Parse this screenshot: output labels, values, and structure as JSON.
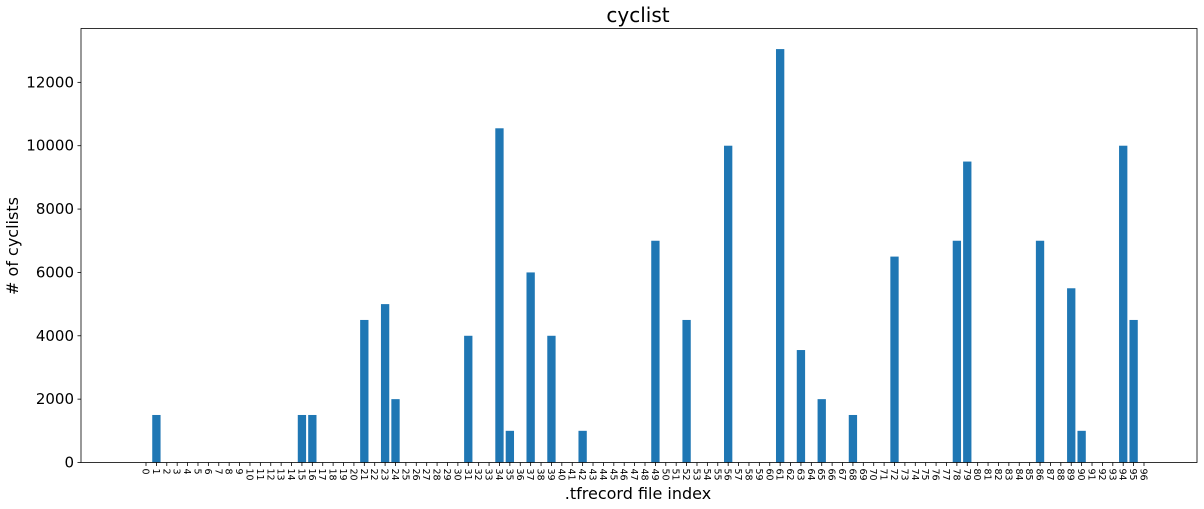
{
  "chart_data": {
    "type": "bar",
    "title": "cyclist",
    "xlabel": ".tfrecord file index",
    "ylabel": "# of cyclists",
    "ylim": [
      0,
      13700
    ],
    "yticks": [
      0,
      2000,
      4000,
      6000,
      8000,
      10000,
      12000
    ],
    "grid": false,
    "bar_color": "#1f77b4",
    "categories": [
      "0",
      "1",
      "2",
      "3",
      "4",
      "5",
      "6",
      "7",
      "8",
      "9",
      "10",
      "11",
      "12",
      "13",
      "14",
      "15",
      "16",
      "17",
      "18",
      "19",
      "20",
      "21",
      "22",
      "23",
      "24",
      "25",
      "26",
      "27",
      "28",
      "29",
      "30",
      "31",
      "32",
      "33",
      "34",
      "35",
      "36",
      "37",
      "38",
      "39",
      "40",
      "41",
      "42",
      "43",
      "44",
      "45",
      "46",
      "47",
      "48",
      "49",
      "50",
      "51",
      "52",
      "53",
      "54",
      "55",
      "56",
      "57",
      "58",
      "59",
      "60",
      "61",
      "62",
      "63",
      "64",
      "65",
      "66",
      "67",
      "68",
      "69",
      "70",
      "71",
      "72",
      "73",
      "74",
      "75",
      "76",
      "77",
      "78",
      "79",
      "80",
      "81",
      "82",
      "83",
      "84",
      "85",
      "86",
      "87",
      "88",
      "89",
      "90",
      "91",
      "92",
      "93",
      "94",
      "95",
      "96"
    ],
    "values": [
      0,
      1500,
      0,
      0,
      0,
      0,
      0,
      0,
      0,
      0,
      0,
      0,
      0,
      0,
      0,
      1500,
      1500,
      0,
      0,
      0,
      0,
      4500,
      0,
      5000,
      2000,
      0,
      0,
      0,
      0,
      0,
      0,
      4000,
      0,
      0,
      10550,
      1000,
      0,
      6000,
      0,
      4000,
      0,
      0,
      1000,
      0,
      0,
      0,
      0,
      0,
      0,
      7000,
      0,
      0,
      4500,
      0,
      0,
      0,
      10000,
      0,
      0,
      0,
      0,
      13050,
      0,
      3550,
      0,
      2000,
      0,
      0,
      1500,
      0,
      0,
      0,
      6500,
      0,
      0,
      0,
      0,
      0,
      7000,
      9500,
      0,
      0,
      0,
      0,
      0,
      0,
      7000,
      0,
      0,
      5500,
      1000,
      0,
      0,
      0,
      10000,
      4500,
      0
    ]
  }
}
